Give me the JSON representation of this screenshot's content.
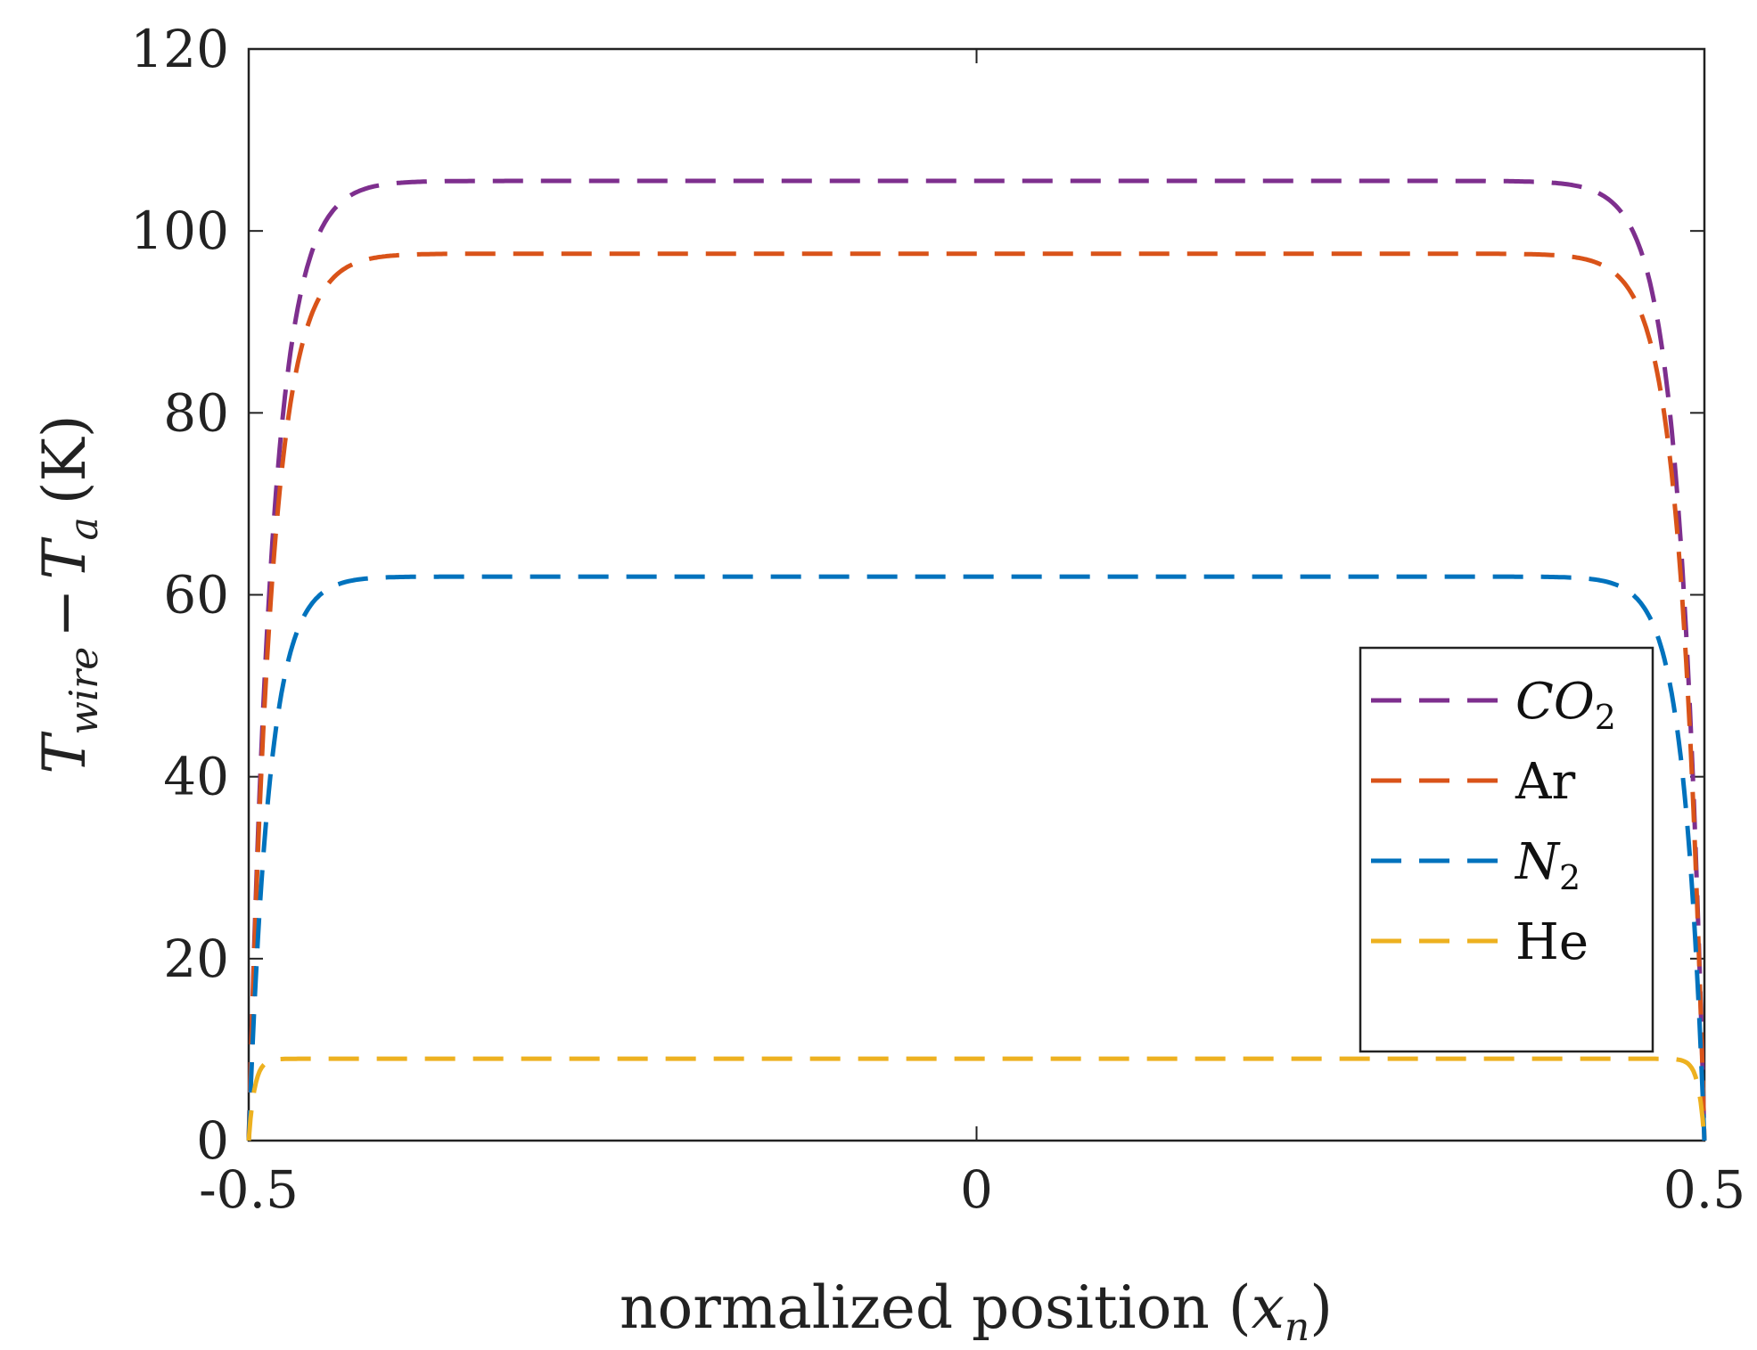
{
  "chart_data": {
    "type": "line",
    "title": "",
    "xlabel_text": "normalized position",
    "xlabel_symbol": "x",
    "xlabel_subscript": "n",
    "ylabel_T1": "T",
    "ylabel_T1_sub": "wire",
    "ylabel_minus": "−",
    "ylabel_T2": "T",
    "ylabel_T2_sub": "a",
    "ylabel_unit": "(K)",
    "xlim": [
      -0.5,
      0.5
    ],
    "ylim": [
      0,
      120
    ],
    "xticks": [
      -0.5,
      0,
      0.5
    ],
    "xtick_labels": [
      "-0.5",
      "0",
      "0.5"
    ],
    "yticks": [
      0,
      20,
      40,
      60,
      80,
      100,
      120
    ],
    "ytick_labels": [
      "0",
      "20",
      "40",
      "60",
      "80",
      "100",
      "120"
    ],
    "grid": false,
    "legend_position": "right",
    "series": [
      {
        "name": "CO2",
        "label_main": "CO",
        "label_sub": "2",
        "italic": true,
        "color": "#7E2F8E",
        "plateau": 105.5,
        "sharpness": 60
      },
      {
        "name": "Ar",
        "label_main": "Ar",
        "label_sub": "",
        "italic": false,
        "color": "#D95319",
        "plateau": 97.5,
        "sharpness": 62
      },
      {
        "name": "N2",
        "label_main": "N",
        "label_sub": "2",
        "italic": true,
        "color": "#0072BD",
        "plateau": 62,
        "sharpness": 70
      },
      {
        "name": "He",
        "label_main": "He",
        "label_sub": "",
        "italic": false,
        "color": "#EDB120",
        "plateau": 9,
        "sharpness": 250
      }
    ]
  }
}
